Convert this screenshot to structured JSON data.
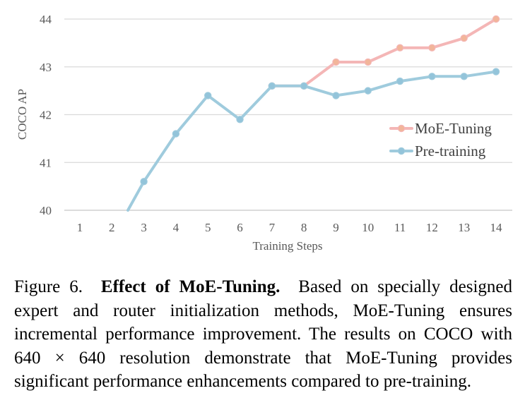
{
  "chart_data": {
    "type": "line",
    "categories": [
      "1",
      "2",
      "3",
      "4",
      "5",
      "6",
      "7",
      "8",
      "9",
      "10",
      "11",
      "12",
      "13",
      "14"
    ],
    "x": [
      1,
      2,
      3,
      4,
      5,
      6,
      7,
      8,
      9,
      10,
      11,
      12,
      13,
      14
    ],
    "xlabel": "Training Steps",
    "ylabel": "COCO AP",
    "ylim": [
      40,
      44
    ],
    "yticks": [
      40,
      41,
      42,
      43,
      44
    ],
    "grid": true,
    "legend_position": "right",
    "series": [
      {
        "name": "MoE-Tuning",
        "color": "#f4b6b6",
        "marker_color": "#f2b59a",
        "points": [
          [
            7,
            42.6
          ],
          [
            8,
            42.6
          ],
          [
            9,
            43.1
          ],
          [
            10,
            43.1
          ],
          [
            11,
            43.4
          ],
          [
            12,
            43.4
          ],
          [
            13,
            43.6
          ],
          [
            14,
            44.0
          ]
        ]
      },
      {
        "name": "Pre-training",
        "color": "#9fcbdd",
        "marker_color": "#93c4da",
        "clipped_start": [
          2.5,
          40.0
        ],
        "points": [
          [
            3,
            40.6
          ],
          [
            4,
            41.6
          ],
          [
            5,
            42.4
          ],
          [
            6,
            41.9
          ],
          [
            7,
            42.6
          ],
          [
            8,
            42.6
          ],
          [
            9,
            42.4
          ],
          [
            10,
            42.5
          ],
          [
            11,
            42.7
          ],
          [
            12,
            42.8
          ],
          [
            13,
            42.8
          ],
          [
            14,
            42.9
          ]
        ]
      }
    ]
  },
  "caption": {
    "label": "Figure 6.",
    "title": "Effect of MoE-Tuning.",
    "body": "Based on specially designed expert and router initialization methods, MoE-Tuning ensures incremental performance improvement. The results on COCO with 640 × 640 resolution demonstrate that MoE-Tuning provides significant performance enhancements compared to pre-training."
  }
}
